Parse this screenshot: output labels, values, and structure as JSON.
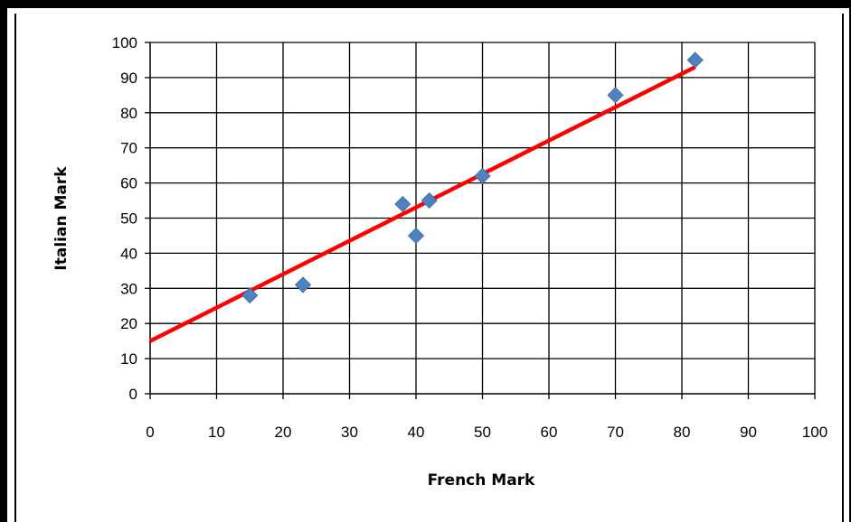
{
  "chart_data": {
    "type": "scatter",
    "xlabel": "French Mark",
    "ylabel": "Italian Mark",
    "xlim": [
      0,
      100
    ],
    "ylim": [
      0,
      100
    ],
    "xticks": [
      "0",
      "10",
      "20",
      "30",
      "40",
      "50",
      "60",
      "70",
      "80",
      "90",
      "100"
    ],
    "yticks": [
      "0",
      "10",
      "20",
      "30",
      "40",
      "50",
      "60",
      "70",
      "80",
      "90",
      "100"
    ],
    "grid": true,
    "legend": "none",
    "series": [
      {
        "points": [
          {
            "x": 15,
            "y": 28
          },
          {
            "x": 23,
            "y": 31
          },
          {
            "x": 38,
            "y": 54
          },
          {
            "x": 40,
            "y": 45
          },
          {
            "x": 42,
            "y": 55
          },
          {
            "x": 50,
            "y": 62
          },
          {
            "x": 70,
            "y": 85
          },
          {
            "x": 82,
            "y": 95
          }
        ],
        "color": "#4f81bd"
      }
    ],
    "trendline": {
      "type": "linear",
      "from": {
        "x": 0,
        "y": 15
      },
      "to": {
        "x": 82,
        "y": 93
      },
      "color": "#ff0000"
    }
  }
}
